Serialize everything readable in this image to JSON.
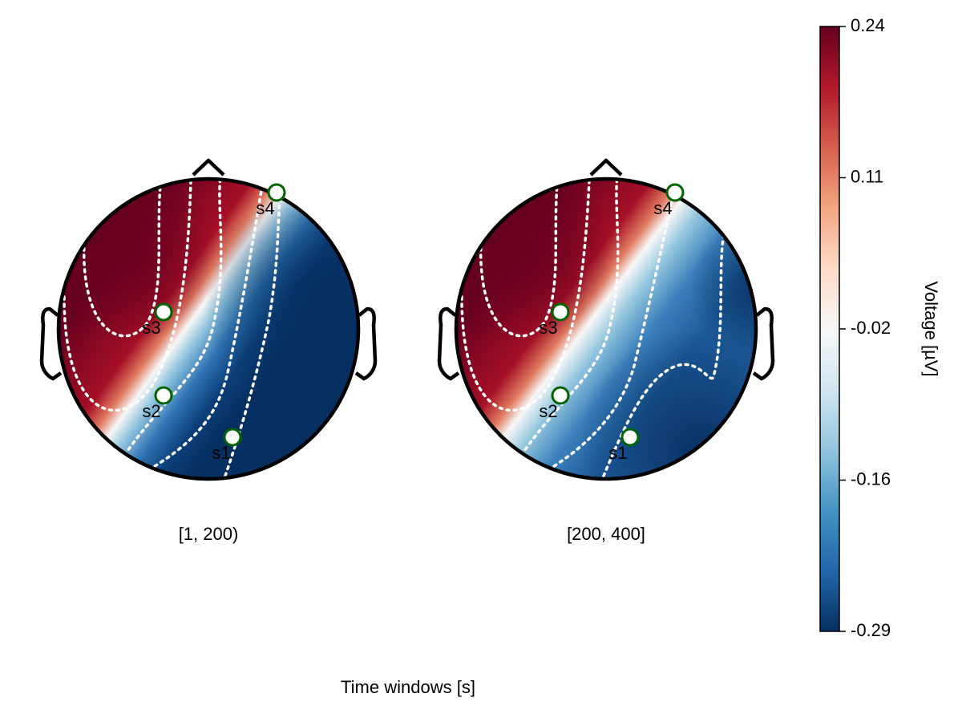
{
  "chart_data": {
    "type": "heatmap",
    "subtype": "eeg-topoplot",
    "xlabel": "Time windows [s]",
    "panels": [
      {
        "label": "[1, 200)"
      },
      {
        "label": "[200, 400]"
      }
    ],
    "sensors": [
      "s1",
      "s2",
      "s3",
      "s4"
    ],
    "colorbar": {
      "label": "Voltage [µV]",
      "colormap": "RdBu (reversed)",
      "range": [
        -0.29,
        0.24
      ],
      "ticks": [
        "0.24",
        "0.11",
        "-0.02",
        "-0.16",
        "-0.29"
      ]
    },
    "contour_style": "white dotted",
    "sensor_marker": "white circle, green outline"
  }
}
